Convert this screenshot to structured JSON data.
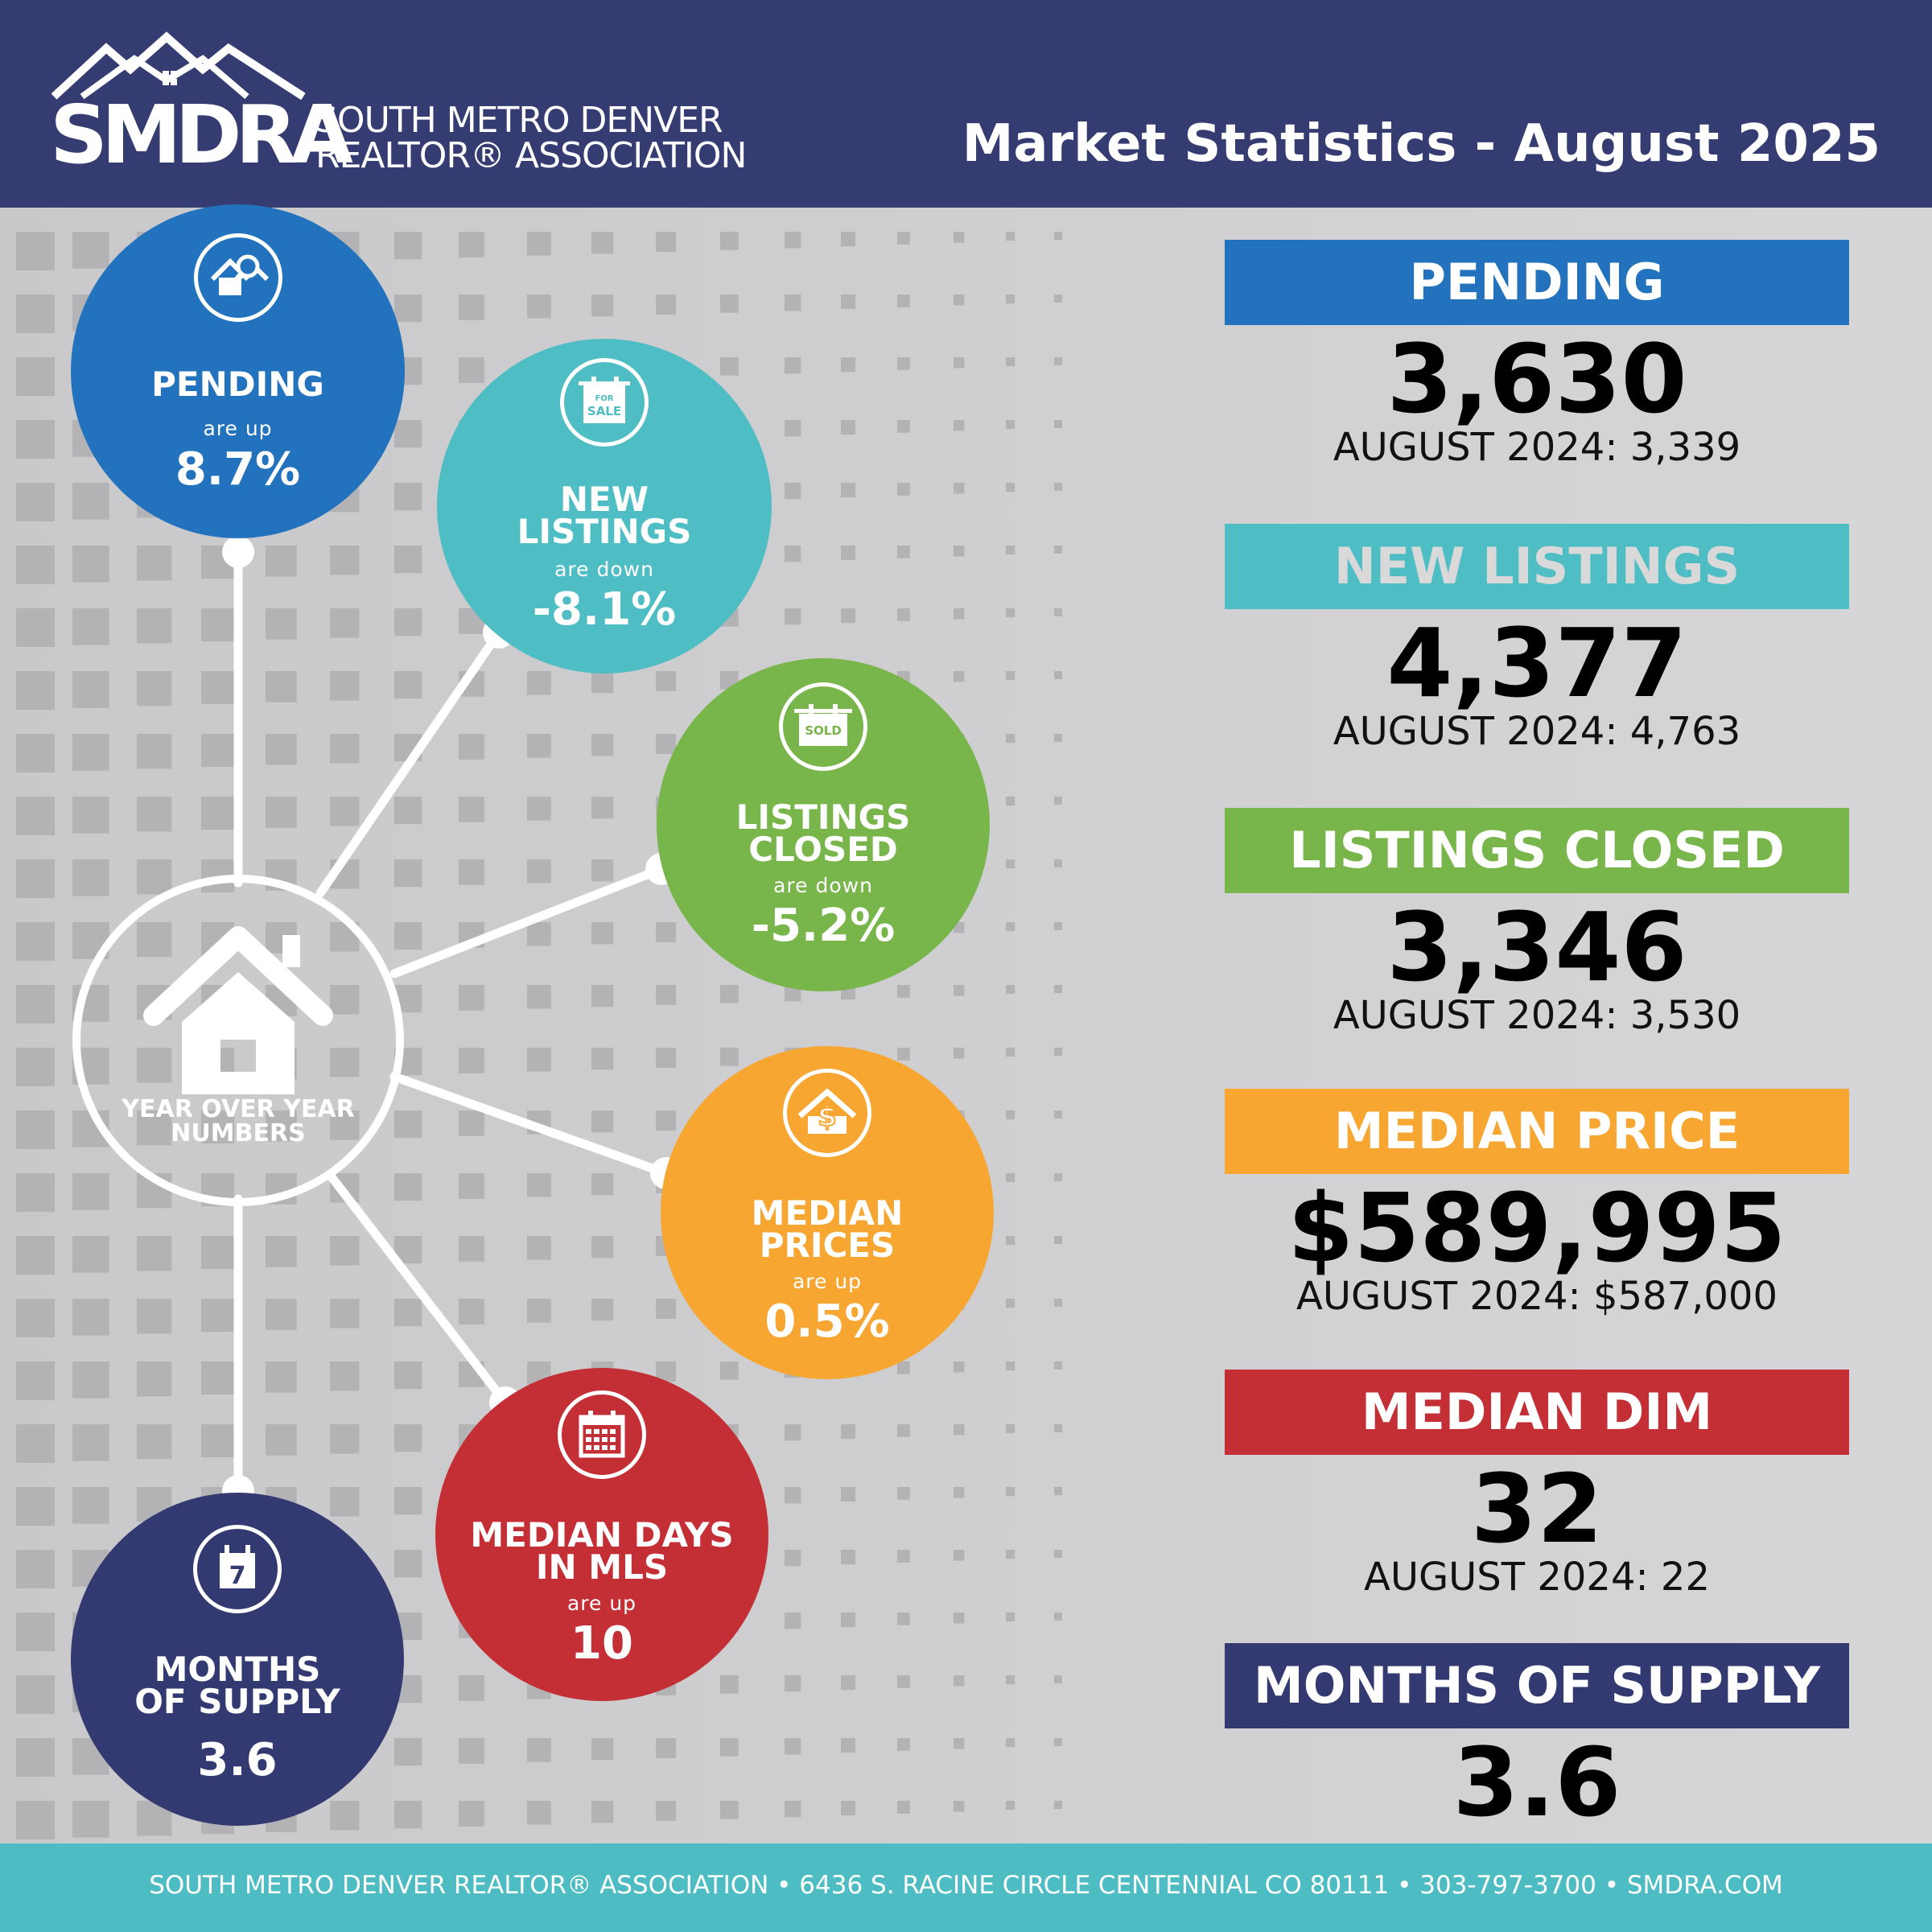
{
  "header": {
    "logo_text": "SMDRA",
    "org_line1": "SOUTH METRO DENVER",
    "org_line2": "REALTOR® ASSOCIATION",
    "title": "Market Statistics - August 2025",
    "color": "#353c72"
  },
  "hub": {
    "label_line1": "YEAR OVER YEAR",
    "label_line2": "NUMBERS",
    "icon": "house-icon"
  },
  "circles": [
    {
      "label1": "PENDING",
      "label2": "",
      "direction": "are up",
      "value": "8.7%",
      "color": "#2372bd",
      "icon": "house-magnifier-icon"
    },
    {
      "label1": "NEW",
      "label2": "LISTINGS",
      "direction": "are down",
      "value": "-8.1%",
      "color": "#4ebdc4",
      "icon": "for-sale-sign-icon",
      "icon_text1": "FOR",
      "icon_text2": "SALE"
    },
    {
      "label1": "LISTINGS",
      "label2": "CLOSED",
      "direction": "are down",
      "value": "-5.2%",
      "color": "#78b54b",
      "icon": "sold-sign-icon",
      "icon_text1": "SOLD"
    },
    {
      "label1": "MEDIAN",
      "label2": "PRICES",
      "direction": "are up",
      "value": "0.5%",
      "color": "#f6a631",
      "icon": "house-dollar-icon"
    },
    {
      "label1": "MEDIAN DAYS",
      "label2": "IN MLS",
      "direction": "are up",
      "value": "10",
      "color": "#c42f36",
      "icon": "calendar-grid-icon"
    },
    {
      "label1": "MONTHS",
      "label2": "OF SUPPLY",
      "direction": "",
      "value": "3.6",
      "color": "#333a72",
      "icon": "calendar-7-icon",
      "icon_text1": "7"
    }
  ],
  "stats": [
    {
      "title": "PENDING",
      "value": "3,630",
      "prev": "AUGUST 2024: 3,339",
      "color": "#2372bd",
      "title_color": "#ffffff"
    },
    {
      "title": "NEW LISTINGS",
      "value": "4,377",
      "prev": "AUGUST 2024: 4,763",
      "color": "#4ebdc4",
      "title_color": "#d9d9d9"
    },
    {
      "title": "LISTINGS CLOSED",
      "value": "3,346",
      "prev": "AUGUST 2024: 3,530",
      "color": "#78b54b",
      "title_color": "#ffffff"
    },
    {
      "title": "MEDIAN PRICE",
      "value": "$589,995",
      "prev": "AUGUST 2024: $587,000",
      "color": "#f6a631",
      "title_color": "#ffffff"
    },
    {
      "title": "MEDIAN DIM",
      "value": "32",
      "prev": "AUGUST 2024: 22",
      "color": "#c42f36",
      "title_color": "#ffffff"
    },
    {
      "title": "MONTHS OF SUPPLY",
      "value": "3.6",
      "prev": "",
      "color": "#333a72",
      "title_color": "#ffffff"
    }
  ],
  "footer": {
    "text": "SOUTH METRO DENVER REALTOR® ASSOCIATION  •  6436 S. RACINE CIRCLE CENTENNIAL CO 80111  •   303-797-3700  •  SMDRA.COM",
    "color": "#4dbdc3"
  }
}
